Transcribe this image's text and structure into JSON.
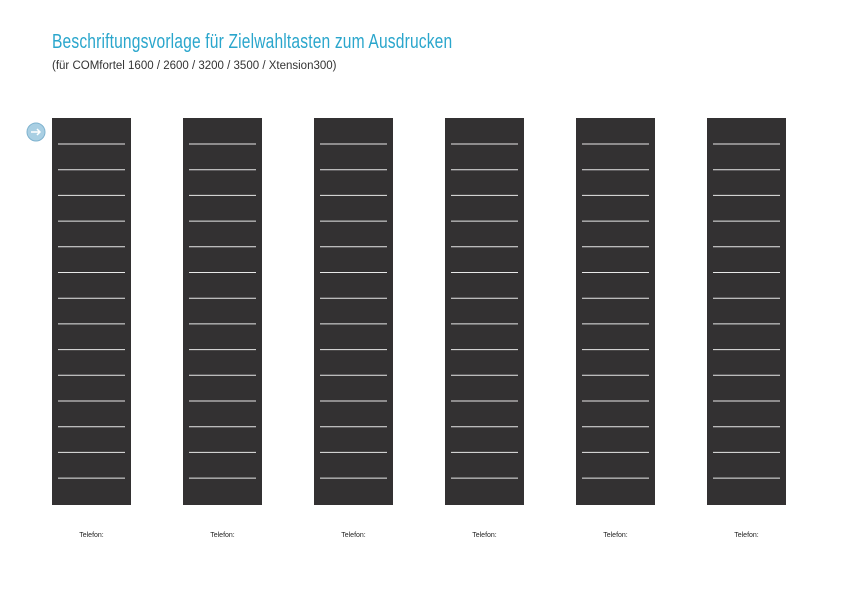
{
  "header": {
    "title": "Beschriftungsvorlage für Zielwahltasten zum Ausdrucken",
    "subtitle": "(für COMfortel 1600 / 2600 / 3200 / 3500 / Xtension300)"
  },
  "strips": [
    {
      "label": "Telefon:"
    },
    {
      "label": "Telefon:"
    },
    {
      "label": "Telefon:"
    },
    {
      "label": "Telefon:"
    },
    {
      "label": "Telefon:"
    },
    {
      "label": "Telefon:"
    }
  ]
}
